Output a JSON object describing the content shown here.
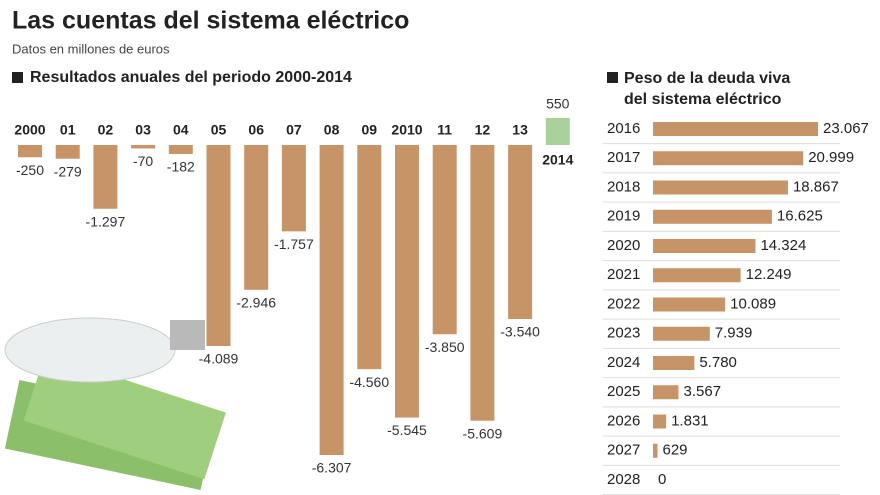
{
  "header": {
    "title": "Las cuentas del sistema eléctrico",
    "subtitle": "Datos en millones de euros"
  },
  "chart_data": [
    {
      "type": "bar",
      "title": "Resultados anuales del periodo 2000-2014",
      "categories": [
        "2000",
        "01",
        "02",
        "03",
        "04",
        "05",
        "06",
        "07",
        "08",
        "09",
        "2010",
        "11",
        "12",
        "13",
        "2014"
      ],
      "values": [
        -250,
        -279,
        -1297,
        -70,
        -182,
        -4089,
        -2946,
        -1757,
        -6307,
        -4560,
        -5545,
        -3850,
        -5609,
        -3540,
        550
      ],
      "value_labels": [
        "-250",
        "-279",
        "-1.297",
        "-70",
        "-182",
        "-4.089",
        "-2.946",
        "-1.757",
        "-6.307",
        "-4.560",
        "-5.545",
        "-3.850",
        "-5.609",
        "-3.540",
        "550"
      ],
      "color": "#c69466",
      "positive_color": "#a9d19c"
    },
    {
      "type": "hbar",
      "title": "Peso de la deuda viva del sistema eléctrico",
      "categories": [
        "2016",
        "2017",
        "2018",
        "2019",
        "2020",
        "2021",
        "2022",
        "2023",
        "2024",
        "2025",
        "2026",
        "2027",
        "2028"
      ],
      "values": [
        23067,
        20999,
        18867,
        16625,
        14324,
        12249,
        10089,
        7939,
        5780,
        3567,
        1831,
        629,
        0
      ],
      "value_labels": [
        "23.067",
        "20.999",
        "18.867",
        "16.625",
        "14.324",
        "12.249",
        "10.089",
        "7.939",
        "5.780",
        "3.567",
        "1.831",
        "629",
        "0"
      ],
      "color": "#c69466"
    }
  ]
}
